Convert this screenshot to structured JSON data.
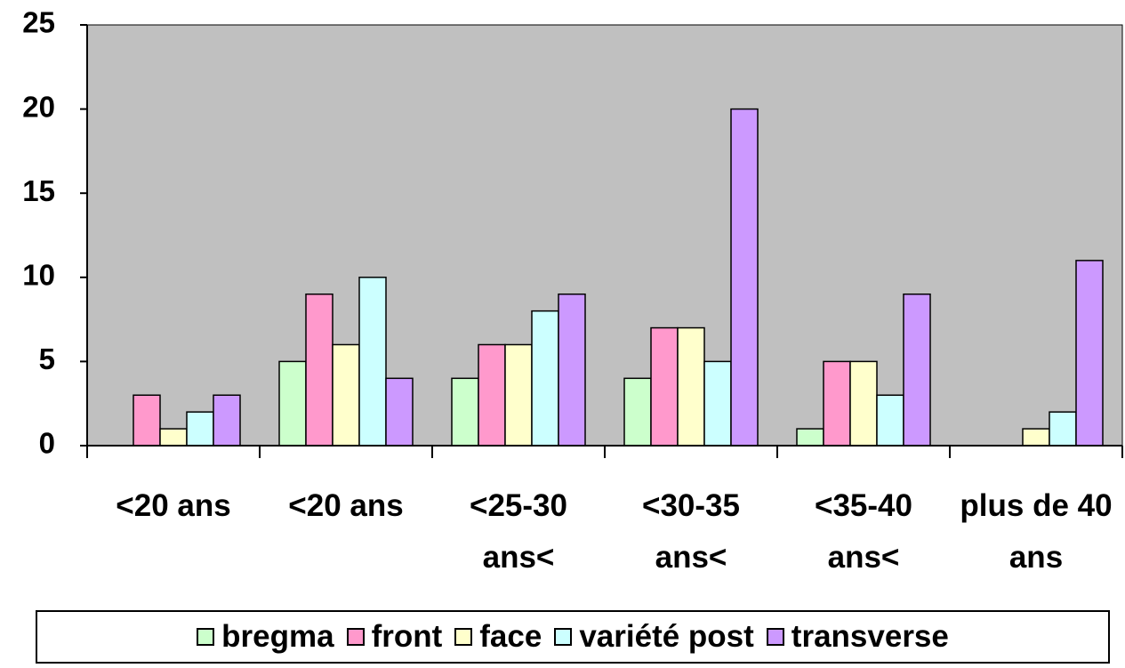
{
  "chart_data": {
    "type": "bar",
    "categories": [
      "<20 ans",
      "<20 ans",
      "<25-30 ans<",
      "<30-35 ans<",
      "<35-40 ans<",
      "plus de 40 ans"
    ],
    "series": [
      {
        "name": "bregma",
        "color": "#ccffcc",
        "values": [
          0,
          5,
          4,
          4,
          1,
          0
        ]
      },
      {
        "name": "front",
        "color": "#ff99cc",
        "values": [
          3,
          9,
          6,
          7,
          5,
          0
        ]
      },
      {
        "name": "face",
        "color": "#ffffcc",
        "values": [
          1,
          6,
          6,
          7,
          5,
          1
        ]
      },
      {
        "name": "variété post",
        "color": "#ccffff",
        "values": [
          2,
          10,
          8,
          5,
          3,
          2
        ]
      },
      {
        "name": "transverse",
        "color": "#cc99ff",
        "values": [
          3,
          4,
          9,
          20,
          9,
          11
        ]
      }
    ],
    "ylim": [
      0,
      25
    ],
    "yticks": [
      0,
      5,
      10,
      15,
      20,
      25
    ],
    "grid": false,
    "plot_background": "#c0c0c0",
    "legend": "bottom"
  }
}
